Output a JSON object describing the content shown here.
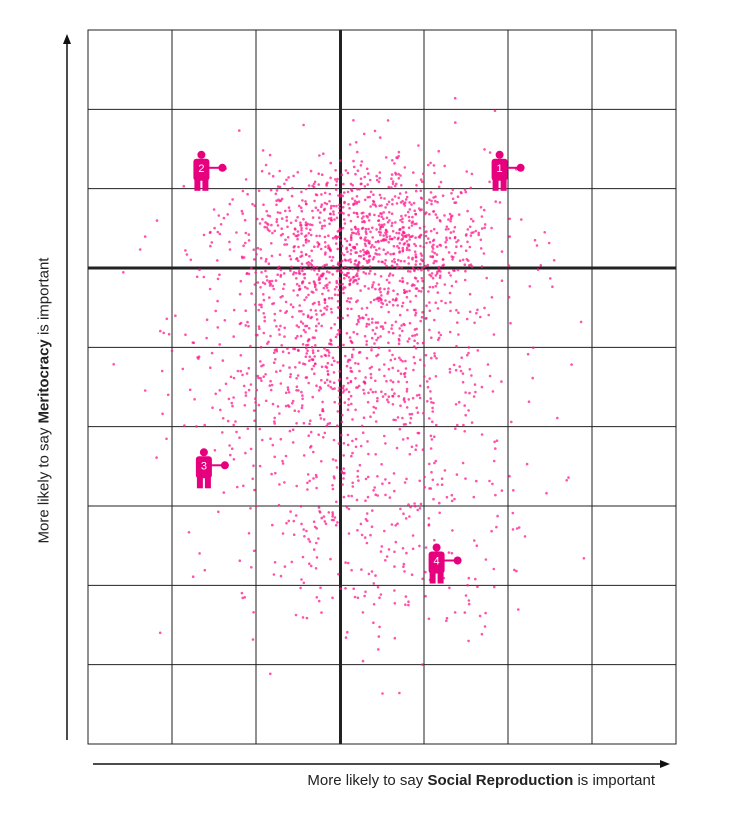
{
  "chart_data": {
    "type": "scatter",
    "xlabel": {
      "prefix": "More likely to say ",
      "emphasis": "Social Reproduction",
      "suffix": " is important"
    },
    "ylabel": {
      "prefix": "More likely to say ",
      "emphasis": "Meritocracy",
      "suffix": " is important"
    },
    "grid": true,
    "grid_columns": 7,
    "grid_rows": 9,
    "point_color": "#ff1a8c",
    "figure_color": "#e6007e",
    "density_regions": [
      {
        "cx": 3.3,
        "cy": 6.3,
        "sx": 1.45,
        "sy": 1.0,
        "weight": 0.55
      },
      {
        "cx": 3.0,
        "cy": 4.7,
        "sx": 1.6,
        "sy": 1.2,
        "weight": 0.3
      },
      {
        "cx": 3.4,
        "cy": 2.6,
        "sx": 1.7,
        "sy": 1.4,
        "weight": 0.15
      }
    ],
    "figures": [
      {
        "label": "1",
        "x": 4.9,
        "y": 7.25
      },
      {
        "label": "2",
        "x": 1.35,
        "y": 7.25
      },
      {
        "label": "3",
        "x": 1.38,
        "y": 3.5
      },
      {
        "label": "4",
        "x": 4.15,
        "y": 2.3
      }
    ]
  }
}
